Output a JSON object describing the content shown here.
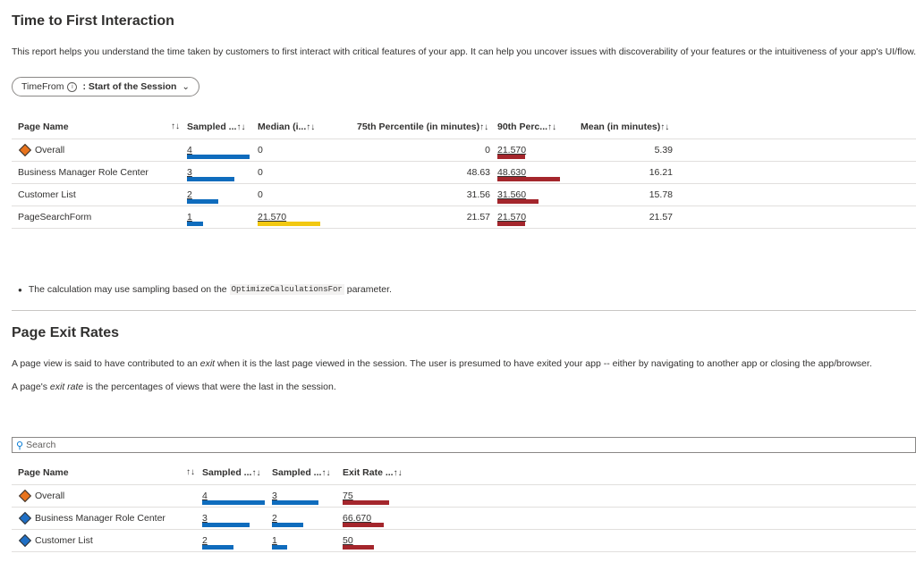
{
  "tfi": {
    "title": "Time to First Interaction",
    "description": "This report helps you understand the time taken by customers to first interact with critical features of your app. It can help you uncover issues with discoverability of your features or the intuitiveness of your app's UI/flow.",
    "filter": {
      "label": "TimeFrom",
      "info_icon": "info-icon",
      "value": ": Start of the Session",
      "chevron_icon": "chevron-down-icon"
    },
    "columns": [
      "Page Name",
      "Sampled ...",
      "Median (i...",
      "75th Percentile (in minutes)",
      "90th Perc...",
      "Mean (in minutes)"
    ],
    "sort_glyph": "↑↓",
    "rows": [
      {
        "name": "Overall",
        "icon": "diamond-orange-icon",
        "sampled": "4",
        "sampled_frac": 1.0,
        "median": "0",
        "median_frac": 0,
        "p75": "0",
        "p90": "21.570",
        "p90_frac": 0.44,
        "mean": "5.39"
      },
      {
        "name": "Business Manager Role Center",
        "icon": "",
        "sampled": "3",
        "sampled_frac": 0.75,
        "median": "0",
        "median_frac": 0,
        "p75": "48.63",
        "p90": "48.630",
        "p90_frac": 1.0,
        "mean": "16.21"
      },
      {
        "name": "Customer List",
        "icon": "",
        "sampled": "2",
        "sampled_frac": 0.5,
        "median": "0",
        "median_frac": 0,
        "p75": "31.56",
        "p90": "31.560",
        "p90_frac": 0.65,
        "mean": "15.78"
      },
      {
        "name": "PageSearchForm",
        "icon": "",
        "sampled": "1",
        "sampled_frac": 0.25,
        "median": "21.570",
        "median_frac": 1.0,
        "p75": "21.57",
        "p90": "21.570",
        "p90_frac": 0.44,
        "mean": "21.57"
      }
    ],
    "note_prefix": "The calculation may use sampling based on the",
    "note_code": "OptimizeCalculationsFor",
    "note_suffix": "parameter."
  },
  "exit": {
    "title": "Page Exit Rates",
    "desc1_a": "A page view is said to have contributed to an",
    "desc1_em": "exit",
    "desc1_b": "when it is the last page viewed in the session. The user is presumed to have exited your app -- either by navigating to another app or closing the app/browser.",
    "desc2_a": "A page's",
    "desc2_em": "exit rate",
    "desc2_b": "is the percentages of views that were the last in the session.",
    "search_placeholder": "Search",
    "columns": [
      "Page Name",
      "Sampled ...",
      "Sampled ...",
      "Exit Rate ..."
    ],
    "rows": [
      {
        "name": "Overall",
        "icon": "diamond-orange-icon",
        "s1": "4",
        "s1_frac": 1.0,
        "s2": "3",
        "s2_frac": 1.0,
        "rate": "75",
        "rate_frac": 1.0
      },
      {
        "name": "Business Manager Role Center",
        "icon": "diamond-blue-icon",
        "s1": "3",
        "s1_frac": 0.75,
        "s2": "2",
        "s2_frac": 0.67,
        "rate": "66.670",
        "rate_frac": 0.89
      },
      {
        "name": "Customer List",
        "icon": "diamond-blue-icon",
        "s1": "2",
        "s1_frac": 0.5,
        "s2": "1",
        "s2_frac": 0.33,
        "rate": "50",
        "rate_frac": 0.67
      }
    ]
  },
  "colors": {
    "blue_bar": "#0f6cbd",
    "red_bar": "#a4262c",
    "yellow_bar": "#f2c811",
    "orange_diamond": "#e8731c",
    "blue_diamond": "#1f6fc5"
  }
}
